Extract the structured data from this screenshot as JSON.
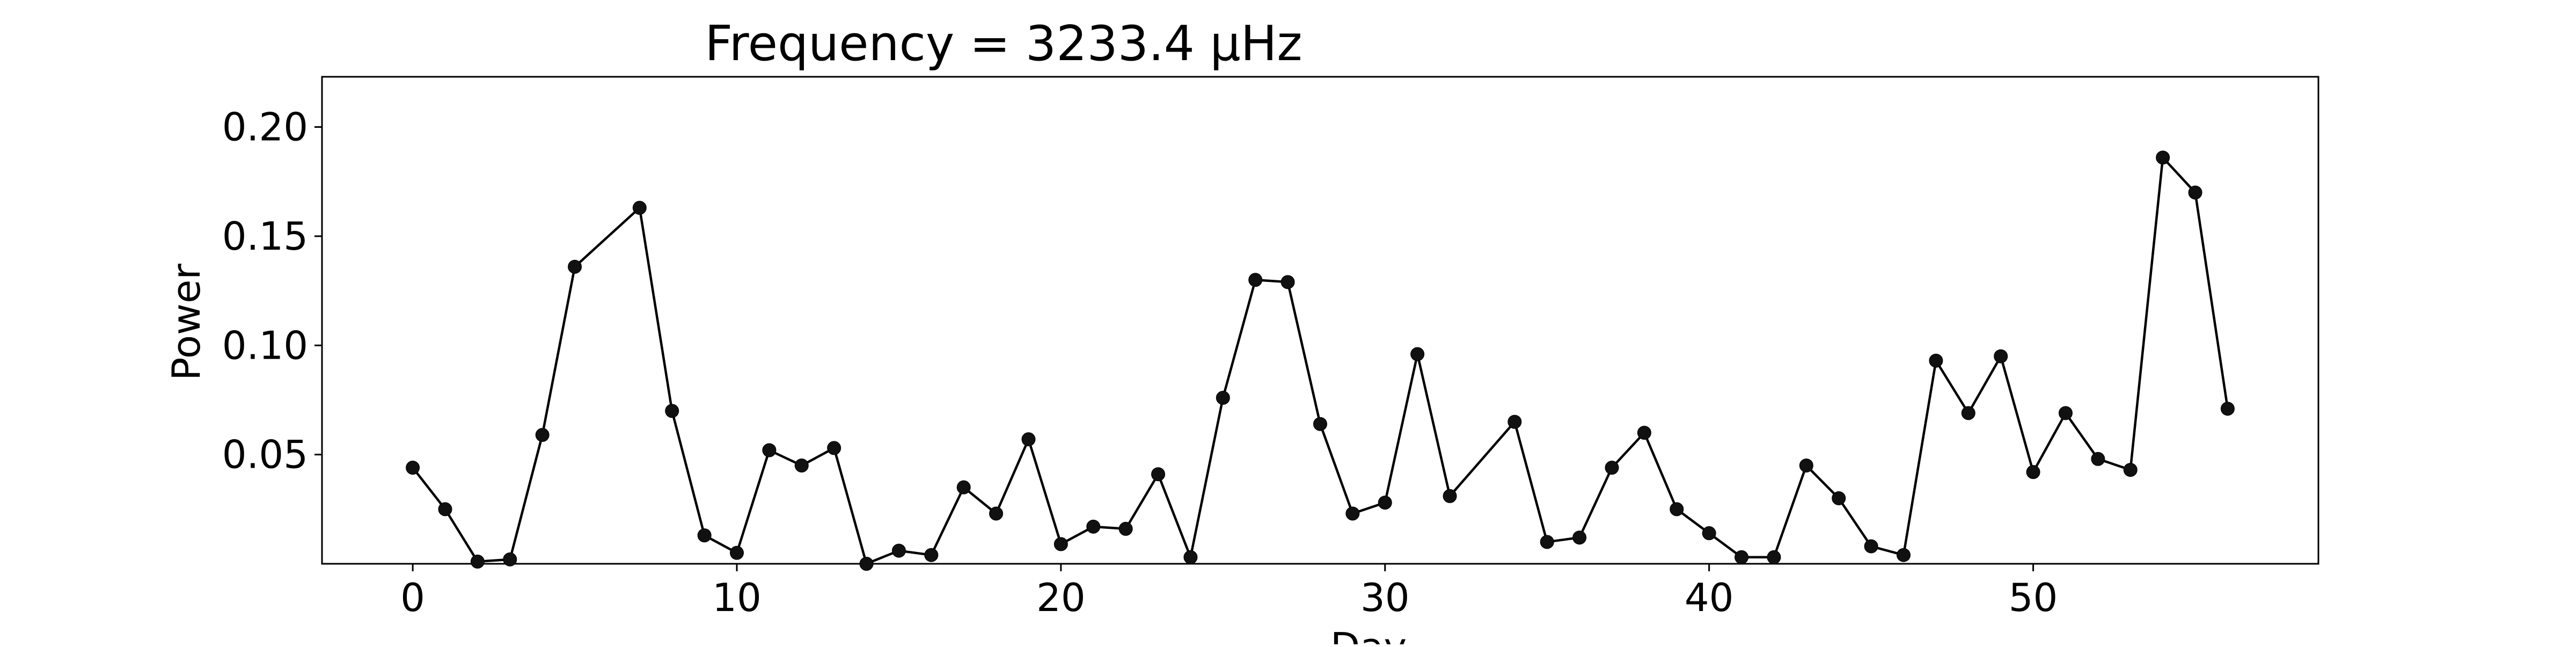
{
  "chart_data": {
    "type": "line",
    "title": "Frequency = 3233.4 μHz",
    "xlabel": "Day",
    "ylabel": "Power",
    "xlim": [
      -2.8,
      58.8
    ],
    "ylim": [
      0.0,
      0.223
    ],
    "xticks": [
      0,
      10,
      20,
      30,
      40,
      50
    ],
    "yticks": [
      0.05,
      0.1,
      0.15,
      0.2
    ],
    "ytick_labels": [
      "0.05",
      "0.10",
      "0.15",
      "0.20"
    ],
    "grid": false,
    "line_color": "#000000",
    "marker_color": "#111111",
    "series": [
      {
        "x": [
          0,
          1,
          2,
          3,
          4,
          5,
          7,
          8,
          9,
          10,
          11,
          12,
          13,
          14,
          15,
          16,
          17,
          18,
          19,
          20,
          21,
          22,
          23,
          24,
          25,
          26,
          27,
          28,
          29,
          30,
          31,
          32,
          34,
          35,
          36,
          37,
          38,
          39,
          40,
          41,
          42,
          43,
          44,
          45,
          46,
          47,
          48,
          49,
          50,
          51,
          52,
          53,
          54,
          55,
          56
        ],
        "values": [
          0.044,
          0.025,
          0.001,
          0.002,
          0.059,
          0.136,
          0.163,
          0.07,
          0.013,
          0.005,
          0.052,
          0.045,
          0.053,
          0.0,
          0.006,
          0.004,
          0.035,
          0.023,
          0.057,
          0.009,
          0.017,
          0.016,
          0.041,
          0.003,
          0.076,
          0.13,
          0.129,
          0.064,
          0.023,
          0.028,
          0.096,
          0.031,
          0.065,
          0.01,
          0.012,
          0.044,
          0.06,
          0.025,
          0.014,
          0.003,
          0.003,
          0.045,
          0.03,
          0.008,
          0.004,
          0.093,
          0.069,
          0.095,
          0.042,
          0.069,
          0.048,
          0.043,
          0.186,
          0.17,
          0.071
        ]
      }
    ]
  }
}
